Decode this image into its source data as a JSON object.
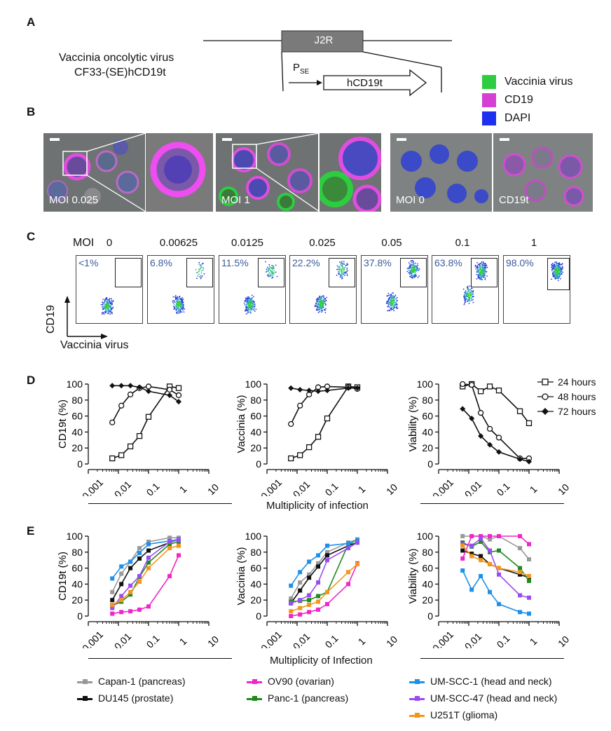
{
  "panels": {
    "a": "A",
    "b": "B",
    "c": "C",
    "d": "D",
    "e": "E"
  },
  "panel_a": {
    "virus_line1": "Vaccinia oncolytic virus",
    "virus_line2": "CF33-(SE)hCD19t",
    "locus": "J2R",
    "promoter_main": "P",
    "promoter_sub": "SE",
    "gene": "hCD19t",
    "legend": [
      {
        "label": "Vaccinia virus",
        "color": "#2ecc40"
      },
      {
        "label": "CD19",
        "color": "#d63fd3"
      },
      {
        "label": "DAPI",
        "color": "#1f2ff0"
      }
    ]
  },
  "panel_b": {
    "images": [
      {
        "label": "MOI 0.025"
      },
      {
        "label": "MOI 1"
      },
      {
        "label": "MOI 0"
      },
      {
        "label": "CD19t"
      }
    ]
  },
  "panel_c": {
    "moi_title": "MOI",
    "moi_values": [
      "0",
      "0.00625",
      "0.0125",
      "0.025",
      "0.05",
      "0.1",
      "1"
    ],
    "percentages": [
      "<1%",
      "6.8%",
      "11.5%",
      "22.2%",
      "37.8%",
      "63.8%",
      "98.0%"
    ],
    "y_label": "CD19",
    "x_label": "Vaccinia virus"
  },
  "panel_d": {
    "xlabel": "Multiplicity of infection",
    "legend": [
      "24 hours",
      "48 hours",
      "72 hours"
    ],
    "x_ticks": [
      "0.001",
      "0.01",
      "0.1",
      "1",
      "10"
    ],
    "y_ticks": [
      "0",
      "20",
      "40",
      "60",
      "80",
      "100"
    ]
  },
  "panel_e": {
    "xlabel": "Multiplicity of Infection",
    "legend": [
      {
        "label": "Capan-1 (pancreas)",
        "color": "#999999"
      },
      {
        "label": "DU145 (prostate)",
        "color": "#111111"
      },
      {
        "label": "OV90 (ovarian)",
        "color": "#f026c8"
      },
      {
        "label": "Panc-1 (pancreas)",
        "color": "#1f8a1f"
      },
      {
        "label": "UM-SCC-1 (head and neck)",
        "color": "#1e90e8"
      },
      {
        "label": "UM-SCC-47 (head and neck)",
        "color": "#9b4cf0"
      },
      {
        "label": "U251T (glioma)",
        "color": "#f5951c"
      }
    ]
  },
  "chart_data": [
    {
      "type": "line",
      "id": "D1",
      "ylabel": "CD19t (%)",
      "xscale": "log",
      "xlim": [
        0.001,
        10
      ],
      "ylim": [
        0,
        100
      ],
      "x": [
        0.00625,
        0.0125,
        0.025,
        0.05,
        0.1,
        0.5,
        1
      ],
      "series": [
        {
          "name": "24 hours",
          "marker": "square",
          "values": [
            7,
            11,
            22,
            35,
            59,
            97,
            95
          ]
        },
        {
          "name": "48 hours",
          "marker": "circle",
          "values": [
            52,
            73,
            87,
            95,
            97,
            93,
            86
          ]
        },
        {
          "name": "72 hours",
          "marker": "diamond",
          "values": [
            98,
            98,
            98,
            96,
            91,
            86,
            78
          ]
        }
      ]
    },
    {
      "type": "line",
      "id": "D2",
      "ylabel": "Vaccinia (%)",
      "xscale": "log",
      "xlim": [
        0.001,
        10
      ],
      "ylim": [
        0,
        100
      ],
      "x": [
        0.00625,
        0.0125,
        0.025,
        0.05,
        0.1,
        0.5,
        1
      ],
      "series": [
        {
          "name": "24 hours",
          "marker": "square",
          "values": [
            7,
            11,
            21,
            34,
            57,
            97,
            96
          ]
        },
        {
          "name": "48 hours",
          "marker": "circle",
          "values": [
            50,
            73,
            87,
            96,
            97,
            96,
            94
          ]
        },
        {
          "name": "72 hours",
          "marker": "diamond",
          "values": [
            95,
            93,
            92,
            91,
            92,
            95,
            95
          ]
        }
      ]
    },
    {
      "type": "line",
      "id": "D3",
      "ylabel": "Viability (%)",
      "xscale": "log",
      "xlim": [
        0.001,
        10
      ],
      "ylim": [
        0,
        100
      ],
      "x": [
        0.00625,
        0.0125,
        0.025,
        0.05,
        0.1,
        0.5,
        1
      ],
      "series": [
        {
          "name": "24 hours",
          "marker": "square",
          "values": [
            97,
            100,
            91,
            97,
            92,
            66,
            51
          ]
        },
        {
          "name": "48 hours",
          "marker": "circle",
          "values": [
            100,
            99,
            64,
            44,
            33,
            7,
            7
          ]
        },
        {
          "name": "72 hours",
          "marker": "diamond",
          "values": [
            69,
            57,
            35,
            24,
            15,
            6,
            3
          ]
        }
      ]
    },
    {
      "type": "line",
      "id": "E1",
      "ylabel": "CD19t (%)",
      "xscale": "log",
      "xlim": [
        0.001,
        10
      ],
      "ylim": [
        0,
        100
      ],
      "x": [
        0.00625,
        0.0125,
        0.025,
        0.05,
        0.1,
        0.5,
        1
      ],
      "series": [
        {
          "name": "Capan-1 (pancreas)",
          "values": [
            30,
            53,
            68,
            85,
            93,
            98,
            98
          ]
        },
        {
          "name": "DU145 (prostate)",
          "values": [
            20,
            40,
            60,
            72,
            82,
            92,
            96
          ]
        },
        {
          "name": "OV90 (ovarian)",
          "values": [
            3,
            5,
            6,
            8,
            12,
            50,
            76
          ]
        },
        {
          "name": "Panc-1 (pancreas)",
          "values": [
            13,
            18,
            27,
            49,
            67,
            90,
            93
          ]
        },
        {
          "name": "UM-SCC-1 (head and neck)",
          "values": [
            47,
            62,
            68,
            79,
            90,
            94,
            96
          ]
        },
        {
          "name": "UM-SCC-47 (head and neck)",
          "values": [
            10,
            25,
            38,
            50,
            73,
            93,
            95
          ]
        },
        {
          "name": "U251T (glioma)",
          "values": [
            14,
            20,
            30,
            43,
            60,
            85,
            88
          ]
        }
      ]
    },
    {
      "type": "line",
      "id": "E2",
      "ylabel": "Vaccinia (%)",
      "xscale": "log",
      "xlim": [
        0.001,
        10
      ],
      "ylim": [
        0,
        100
      ],
      "x": [
        0.00625,
        0.0125,
        0.025,
        0.05,
        0.1,
        0.5,
        1
      ],
      "series": [
        {
          "name": "Capan-1 (pancreas)",
          "values": [
            22,
            42,
            52,
            66,
            80,
            92,
            96
          ]
        },
        {
          "name": "DU145 (prostate)",
          "values": [
            16,
            32,
            48,
            62,
            76,
            88,
            92
          ]
        },
        {
          "name": "OV90 (ovarian)",
          "values": [
            0,
            2,
            5,
            8,
            15,
            40,
            66
          ]
        },
        {
          "name": "Panc-1 (pancreas)",
          "values": [
            18,
            19,
            20,
            25,
            30,
            90,
            92
          ]
        },
        {
          "name": "UM-SCC-1 (head and neck)",
          "values": [
            38,
            55,
            68,
            76,
            88,
            91,
            95
          ]
        },
        {
          "name": "UM-SCC-47 (head and neck)",
          "values": [
            16,
            20,
            26,
            42,
            70,
            85,
            92
          ]
        },
        {
          "name": "U251T (glioma)",
          "values": [
            6,
            10,
            14,
            18,
            30,
            55,
            65
          ]
        }
      ]
    },
    {
      "type": "line",
      "id": "E3",
      "ylabel": "Viability (%)",
      "xscale": "log",
      "xlim": [
        0.001,
        10
      ],
      "ylim": [
        0,
        100
      ],
      "x": [
        0.00625,
        0.0125,
        0.025,
        0.05,
        0.1,
        0.5,
        1
      ],
      "series": [
        {
          "name": "Capan-1 (pancreas)",
          "values": [
            100,
            100,
            100,
            96,
            100,
            85,
            71
          ]
        },
        {
          "name": "DU145 (prostate)",
          "values": [
            82,
            78,
            75,
            65,
            60,
            52,
            48
          ]
        },
        {
          "name": "OV90 (ovarian)",
          "values": [
            72,
            100,
            100,
            100,
            100,
            100,
            90
          ]
        },
        {
          "name": "Panc-1 (pancreas)",
          "values": [
            92,
            87,
            93,
            80,
            82,
            60,
            44
          ]
        },
        {
          "name": "UM-SCC-1 (head and neck)",
          "values": [
            57,
            33,
            50,
            30,
            15,
            5,
            3
          ]
        },
        {
          "name": "UM-SCC-47 (head and neck)",
          "values": [
            90,
            88,
            97,
            82,
            52,
            26,
            23
          ]
        },
        {
          "name": "U251T (glioma)",
          "values": [
            88,
            75,
            70,
            65,
            60,
            55,
            50
          ]
        }
      ]
    }
  ],
  "axis": {
    "x_ticks": [
      "0.001",
      "0.01",
      "0.1",
      "1",
      "10"
    ],
    "y_ticks": [
      "0",
      "20",
      "40",
      "60",
      "80",
      "100"
    ]
  }
}
